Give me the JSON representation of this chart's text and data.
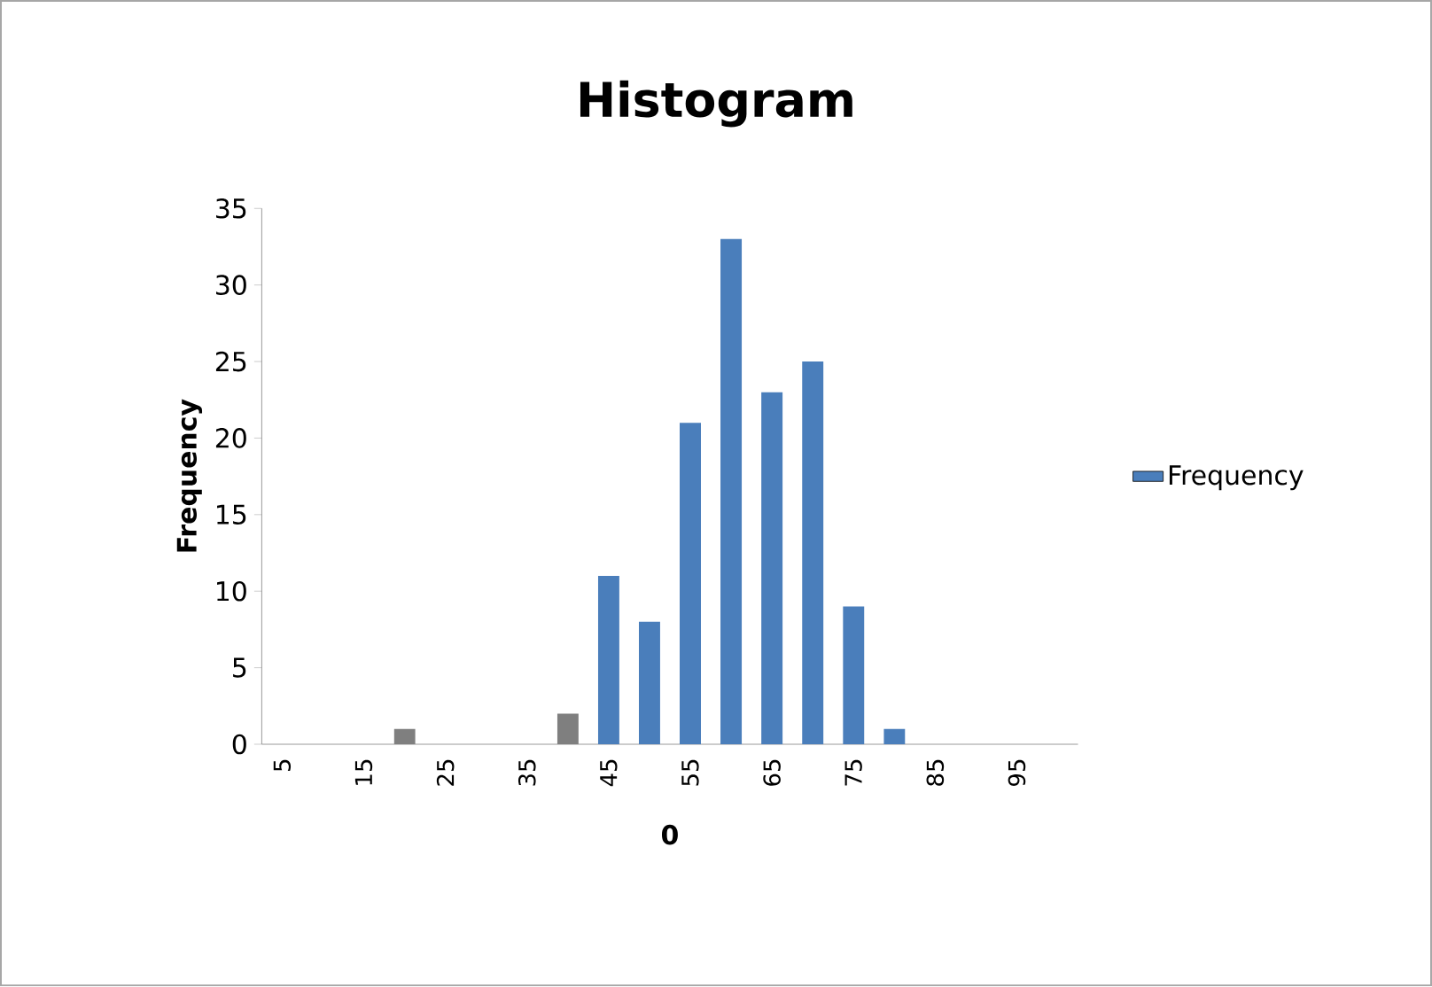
{
  "chart_data": {
    "type": "bar",
    "title": "Histogram",
    "xlabel": "0",
    "ylabel": "Frequency",
    "categories": [
      "5",
      null,
      "15",
      null,
      "25",
      null,
      "35",
      null,
      "45",
      null,
      "55",
      null,
      "65",
      null,
      "75",
      null,
      "85",
      null,
      "95",
      null
    ],
    "series": [
      {
        "name": "Frequency",
        "color": "#4a7ebb",
        "values": [
          0,
          0,
          0,
          1,
          0,
          0,
          0,
          2,
          11,
          8,
          21,
          33,
          23,
          25,
          9,
          1,
          0,
          0,
          0,
          0
        ],
        "colors": [
          "#4a7ebb",
          "#4a7ebb",
          "#4a7ebb",
          "#7f7f7f",
          "#4a7ebb",
          "#4a7ebb",
          "#4a7ebb",
          "#7f7f7f",
          "#4a7ebb",
          "#4a7ebb",
          "#4a7ebb",
          "#4a7ebb",
          "#4a7ebb",
          "#4a7ebb",
          "#4a7ebb",
          "#4a7ebb",
          "#4a7ebb",
          "#4a7ebb",
          "#4a7ebb",
          "#4a7ebb"
        ]
      }
    ],
    "ylim": [
      0,
      35
    ],
    "yticks": [
      0,
      5,
      10,
      15,
      20,
      25,
      30,
      35
    ],
    "grid": false,
    "legend": "right"
  }
}
